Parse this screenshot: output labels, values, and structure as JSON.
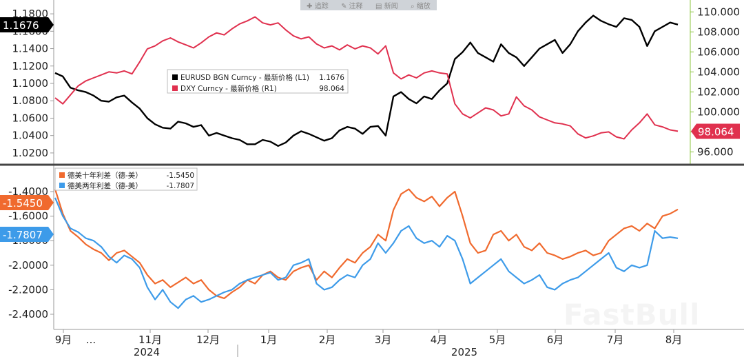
{
  "toolbar": [
    {
      "icon": "plus-icon",
      "label": "追踪"
    },
    {
      "icon": "pencil-icon",
      "label": "注释"
    },
    {
      "icon": "doc-icon",
      "label": "新闻"
    },
    {
      "icon": "search-icon",
      "label": "缩放"
    }
  ],
  "watermark": "FastBull",
  "colors": {
    "eurusd": "#000000",
    "dxy": "#e0304e",
    "spread10": "#f06a2e",
    "spread2": "#3d9be9",
    "right_axis": "#8cc63f"
  },
  "chart_data": [
    {
      "type": "line",
      "name": "top-panel",
      "left_axis": {
        "ticks": [
          "1.1800",
          "1.1600",
          "1.1400",
          "1.1200",
          "1.1000",
          "1.0800",
          "1.0600",
          "1.0400",
          "1.0200"
        ],
        "range": [
          1.012,
          1.188
        ]
      },
      "right_axis": {
        "ticks": [
          "110.000",
          "108.000",
          "106.000",
          "104.000",
          "102.000",
          "100.000",
          "98.000",
          "96.000"
        ],
        "range": [
          95.2,
          110.5
        ]
      },
      "legend": [
        {
          "label": "EURUSD BGN Curncy - 最新价格 (L1)",
          "value": "1.1676"
        },
        {
          "label": "DXY Curncy - 最新价格 (R1)",
          "value": "98.064"
        }
      ],
      "last_values": {
        "left": "1.1676",
        "right": "98.064"
      },
      "series": [
        {
          "name": "EURUSD",
          "axis": "left",
          "values": [
            1.112,
            1.108,
            1.095,
            1.092,
            1.09,
            1.086,
            1.08,
            1.079,
            1.084,
            1.086,
            1.078,
            1.071,
            1.06,
            1.053,
            1.049,
            1.048,
            1.056,
            1.054,
            1.05,
            1.052,
            1.04,
            1.043,
            1.04,
            1.037,
            1.035,
            1.03,
            1.03,
            1.035,
            1.033,
            1.028,
            1.032,
            1.04,
            1.045,
            1.042,
            1.038,
            1.034,
            1.037,
            1.046,
            1.05,
            1.048,
            1.042,
            1.05,
            1.051,
            1.04,
            1.085,
            1.09,
            1.082,
            1.077,
            1.085,
            1.082,
            1.092,
            1.1,
            1.128,
            1.136,
            1.147,
            1.135,
            1.13,
            1.125,
            1.145,
            1.135,
            1.13,
            1.12,
            1.13,
            1.14,
            1.145,
            1.15,
            1.135,
            1.145,
            1.16,
            1.17,
            1.178,
            1.172,
            1.168,
            1.165,
            1.175,
            1.173,
            1.165,
            1.143,
            1.16,
            1.165,
            1.17,
            1.1676
          ]
        },
        {
          "name": "DXY",
          "axis": "right",
          "values": [
            101.4,
            100.8,
            101.7,
            102.6,
            103.1,
            103.4,
            103.7,
            104.0,
            103.9,
            104.1,
            103.8,
            105.0,
            106.3,
            106.6,
            107.1,
            107.4,
            107.0,
            106.7,
            106.4,
            106.9,
            107.5,
            107.9,
            107.7,
            108.3,
            108.8,
            109.1,
            109.5,
            108.9,
            108.7,
            108.9,
            108.2,
            107.6,
            107.3,
            107.5,
            106.8,
            106.4,
            106.6,
            106.2,
            106.7,
            106.3,
            106.6,
            106.4,
            105.8,
            106.6,
            103.9,
            103.3,
            103.7,
            103.4,
            103.9,
            104.1,
            103.9,
            103.8,
            100.8,
            99.8,
            99.4,
            99.9,
            100.4,
            100.2,
            99.6,
            99.8,
            101.5,
            100.6,
            100.2,
            99.5,
            99.2,
            98.9,
            98.8,
            98.6,
            97.8,
            97.4,
            97.6,
            97.9,
            98.0,
            97.5,
            97.3,
            98.2,
            98.9,
            99.8,
            98.7,
            98.5,
            98.2,
            98.064
          ]
        }
      ]
    },
    {
      "type": "line",
      "name": "bottom-panel",
      "left_axis": {
        "ticks": [
          "-1.4000",
          "-1.6000",
          "-1.8000",
          "-2.0000",
          "-2.2000",
          "-2.4000"
        ],
        "range": [
          -2.49,
          -1.22
        ]
      },
      "legend": [
        {
          "label": "德美十年利差（德-美）",
          "value": "-1.5450"
        },
        {
          "label": "德美两年利差（德-美）",
          "value": "-1.7807"
        }
      ],
      "last_values": {
        "spread10": "-1.5450",
        "spread2": "-1.7807"
      },
      "series": [
        {
          "name": "德美十年利差",
          "values": [
            -1.38,
            -1.58,
            -1.72,
            -1.77,
            -1.83,
            -1.87,
            -1.9,
            -1.96,
            -1.9,
            -1.88,
            -1.93,
            -1.98,
            -2.08,
            -2.15,
            -2.12,
            -2.18,
            -2.14,
            -2.1,
            -2.15,
            -2.12,
            -2.2,
            -2.25,
            -2.27,
            -2.22,
            -2.18,
            -2.12,
            -2.15,
            -2.08,
            -2.05,
            -2.1,
            -2.12,
            -2.05,
            -2.02,
            -2.0,
            -2.12,
            -2.05,
            -2.1,
            -2.02,
            -1.95,
            -1.98,
            -1.9,
            -1.85,
            -1.75,
            -1.8,
            -1.55,
            -1.42,
            -1.38,
            -1.45,
            -1.48,
            -1.44,
            -1.52,
            -1.45,
            -1.4,
            -1.6,
            -1.82,
            -1.9,
            -1.88,
            -1.75,
            -1.72,
            -1.8,
            -1.75,
            -1.85,
            -1.88,
            -1.82,
            -1.9,
            -1.92,
            -1.95,
            -1.93,
            -1.9,
            -1.88,
            -1.92,
            -1.9,
            -1.8,
            -1.75,
            -1.7,
            -1.68,
            -1.72,
            -1.66,
            -1.7,
            -1.6,
            -1.58,
            -1.545
          ]
        },
        {
          "name": "德美两年利差",
          "values": [
            -1.45,
            -1.6,
            -1.7,
            -1.73,
            -1.78,
            -1.8,
            -1.85,
            -1.93,
            -1.98,
            -1.92,
            -1.95,
            -2.02,
            -2.18,
            -2.28,
            -2.2,
            -2.3,
            -2.35,
            -2.28,
            -2.25,
            -2.3,
            -2.28,
            -2.25,
            -2.22,
            -2.2,
            -2.15,
            -2.12,
            -2.1,
            -2.08,
            -2.06,
            -2.12,
            -2.1,
            -2.0,
            -1.98,
            -1.95,
            -2.15,
            -2.2,
            -2.18,
            -2.12,
            -2.08,
            -2.1,
            -2.0,
            -1.95,
            -1.82,
            -1.9,
            -1.82,
            -1.72,
            -1.68,
            -1.78,
            -1.82,
            -1.8,
            -1.85,
            -1.76,
            -1.8,
            -1.95,
            -2.15,
            -2.1,
            -2.05,
            -2.0,
            -1.95,
            -2.05,
            -2.1,
            -2.15,
            -2.12,
            -2.08,
            -2.18,
            -2.2,
            -2.15,
            -2.12,
            -2.1,
            -2.05,
            -2.0,
            -1.95,
            -1.9,
            -2.02,
            -2.05,
            -2.0,
            -2.02,
            -2.0,
            -1.72,
            -1.78,
            -1.77,
            -1.7807
          ]
        }
      ]
    }
  ],
  "x_axis": {
    "months": [
      "9月",
      "...",
      "11月",
      "12月",
      "1月",
      "2月",
      "3月",
      "4月",
      "5月",
      "6月",
      "7月",
      "8月"
    ],
    "years": [
      "2024",
      "2025"
    ]
  }
}
